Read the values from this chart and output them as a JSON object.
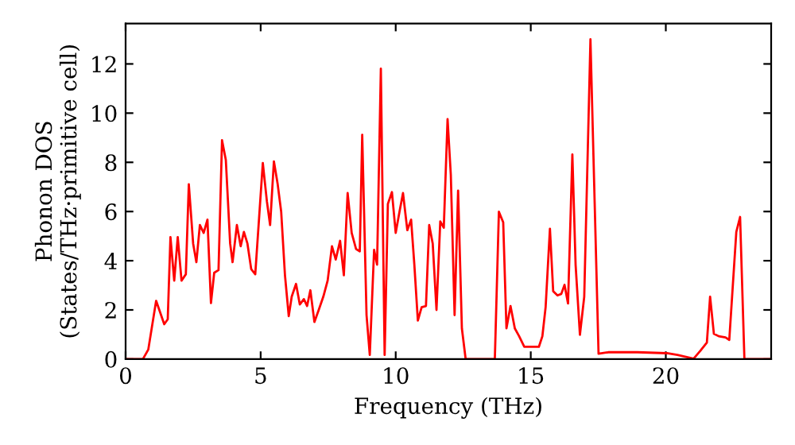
{
  "chart_data": {
    "type": "line",
    "xlabel": "Frequency (THz)",
    "ylabel": "Phonon DOS\n(States/THz·primitive cell)",
    "xlim": [
      0,
      23.9
    ],
    "ylim": [
      0,
      13.64
    ],
    "xticks": [
      0,
      5,
      10,
      15,
      20
    ],
    "yticks": [
      0,
      2,
      4,
      6,
      8,
      10,
      12
    ],
    "grid": false,
    "legend": false,
    "series": [
      {
        "color": "#ff0000",
        "x": [
          0,
          0.64,
          0.84,
          1.13,
          1.43,
          1.56,
          1.66,
          1.8,
          1.93,
          2.07,
          2.23,
          2.34,
          2.5,
          2.62,
          2.75,
          2.89,
          3.03,
          3.16,
          3.28,
          3.44,
          3.57,
          3.71,
          3.87,
          3.96,
          4.12,
          4.26,
          4.38,
          4.51,
          4.65,
          4.8,
          5.08,
          5.23,
          5.35,
          5.49,
          5.63,
          5.76,
          5.9,
          6.04,
          6.15,
          6.31,
          6.45,
          6.6,
          6.72,
          6.84,
          6.99,
          7.15,
          7.32,
          7.48,
          7.64,
          7.78,
          7.94,
          8.08,
          8.22,
          8.37,
          8.53,
          8.67,
          8.76,
          8.92,
          9.04,
          9.2,
          9.31,
          9.45,
          9.59,
          9.71,
          9.86,
          10.0,
          10.14,
          10.27,
          10.43,
          10.57,
          10.69,
          10.82,
          10.96,
          11.12,
          11.24,
          11.37,
          11.51,
          11.65,
          11.78,
          11.92,
          12.04,
          12.18,
          12.31,
          12.45,
          12.59,
          13.67,
          13.82,
          13.98,
          14.1,
          14.25,
          14.41,
          14.57,
          14.76,
          15.3,
          15.43,
          15.55,
          15.71,
          15.83,
          15.99,
          16.13,
          16.25,
          16.38,
          16.54,
          16.66,
          16.82,
          16.98,
          17.21,
          17.51,
          17.87,
          18.95,
          20.04,
          20.43,
          21.03,
          21.28,
          21.52,
          21.64,
          21.78,
          21.96,
          22.21,
          22.35,
          22.61,
          22.75,
          22.91,
          23.89
        ],
        "values": [
          0,
          0,
          0.39,
          2.37,
          1.42,
          1.62,
          4.96,
          3.19,
          4.96,
          3.19,
          3.45,
          7.11,
          4.7,
          3.94,
          5.45,
          5.13,
          5.67,
          2.28,
          3.51,
          3.62,
          8.9,
          8.1,
          4.7,
          3.94,
          5.45,
          4.59,
          5.17,
          4.7,
          3.66,
          3.45,
          7.97,
          6.42,
          5.45,
          8.04,
          7.11,
          5.99,
          3.41,
          1.75,
          2.54,
          3.06,
          2.22,
          2.44,
          2.16,
          2.8,
          1.51,
          2.0,
          2.54,
          3.19,
          4.59,
          4.05,
          4.81,
          3.41,
          6.75,
          5.13,
          4.48,
          4.38,
          9.12,
          1.79,
          0.17,
          4.44,
          3.84,
          11.81,
          0.17,
          6.31,
          6.79,
          5.13,
          5.99,
          6.75,
          5.24,
          5.67,
          3.84,
          1.57,
          2.11,
          2.16,
          5.45,
          4.7,
          2.0,
          5.6,
          5.34,
          9.76,
          7.5,
          1.79,
          6.85,
          1.25,
          0,
          0,
          5.99,
          5.56,
          1.25,
          2.16,
          1.25,
          0.93,
          0.5,
          0.5,
          0.93,
          2.11,
          5.3,
          2.76,
          2.59,
          2.65,
          3.02,
          2.26,
          8.32,
          3.84,
          0.99,
          2.54,
          13.0,
          0.22,
          0.28,
          0.28,
          0.24,
          0.17,
          0.02,
          0.34,
          0.67,
          2.54,
          1.03,
          0.93,
          0.88,
          0.78,
          5.17,
          5.78,
          0,
          0
        ]
      }
    ]
  }
}
